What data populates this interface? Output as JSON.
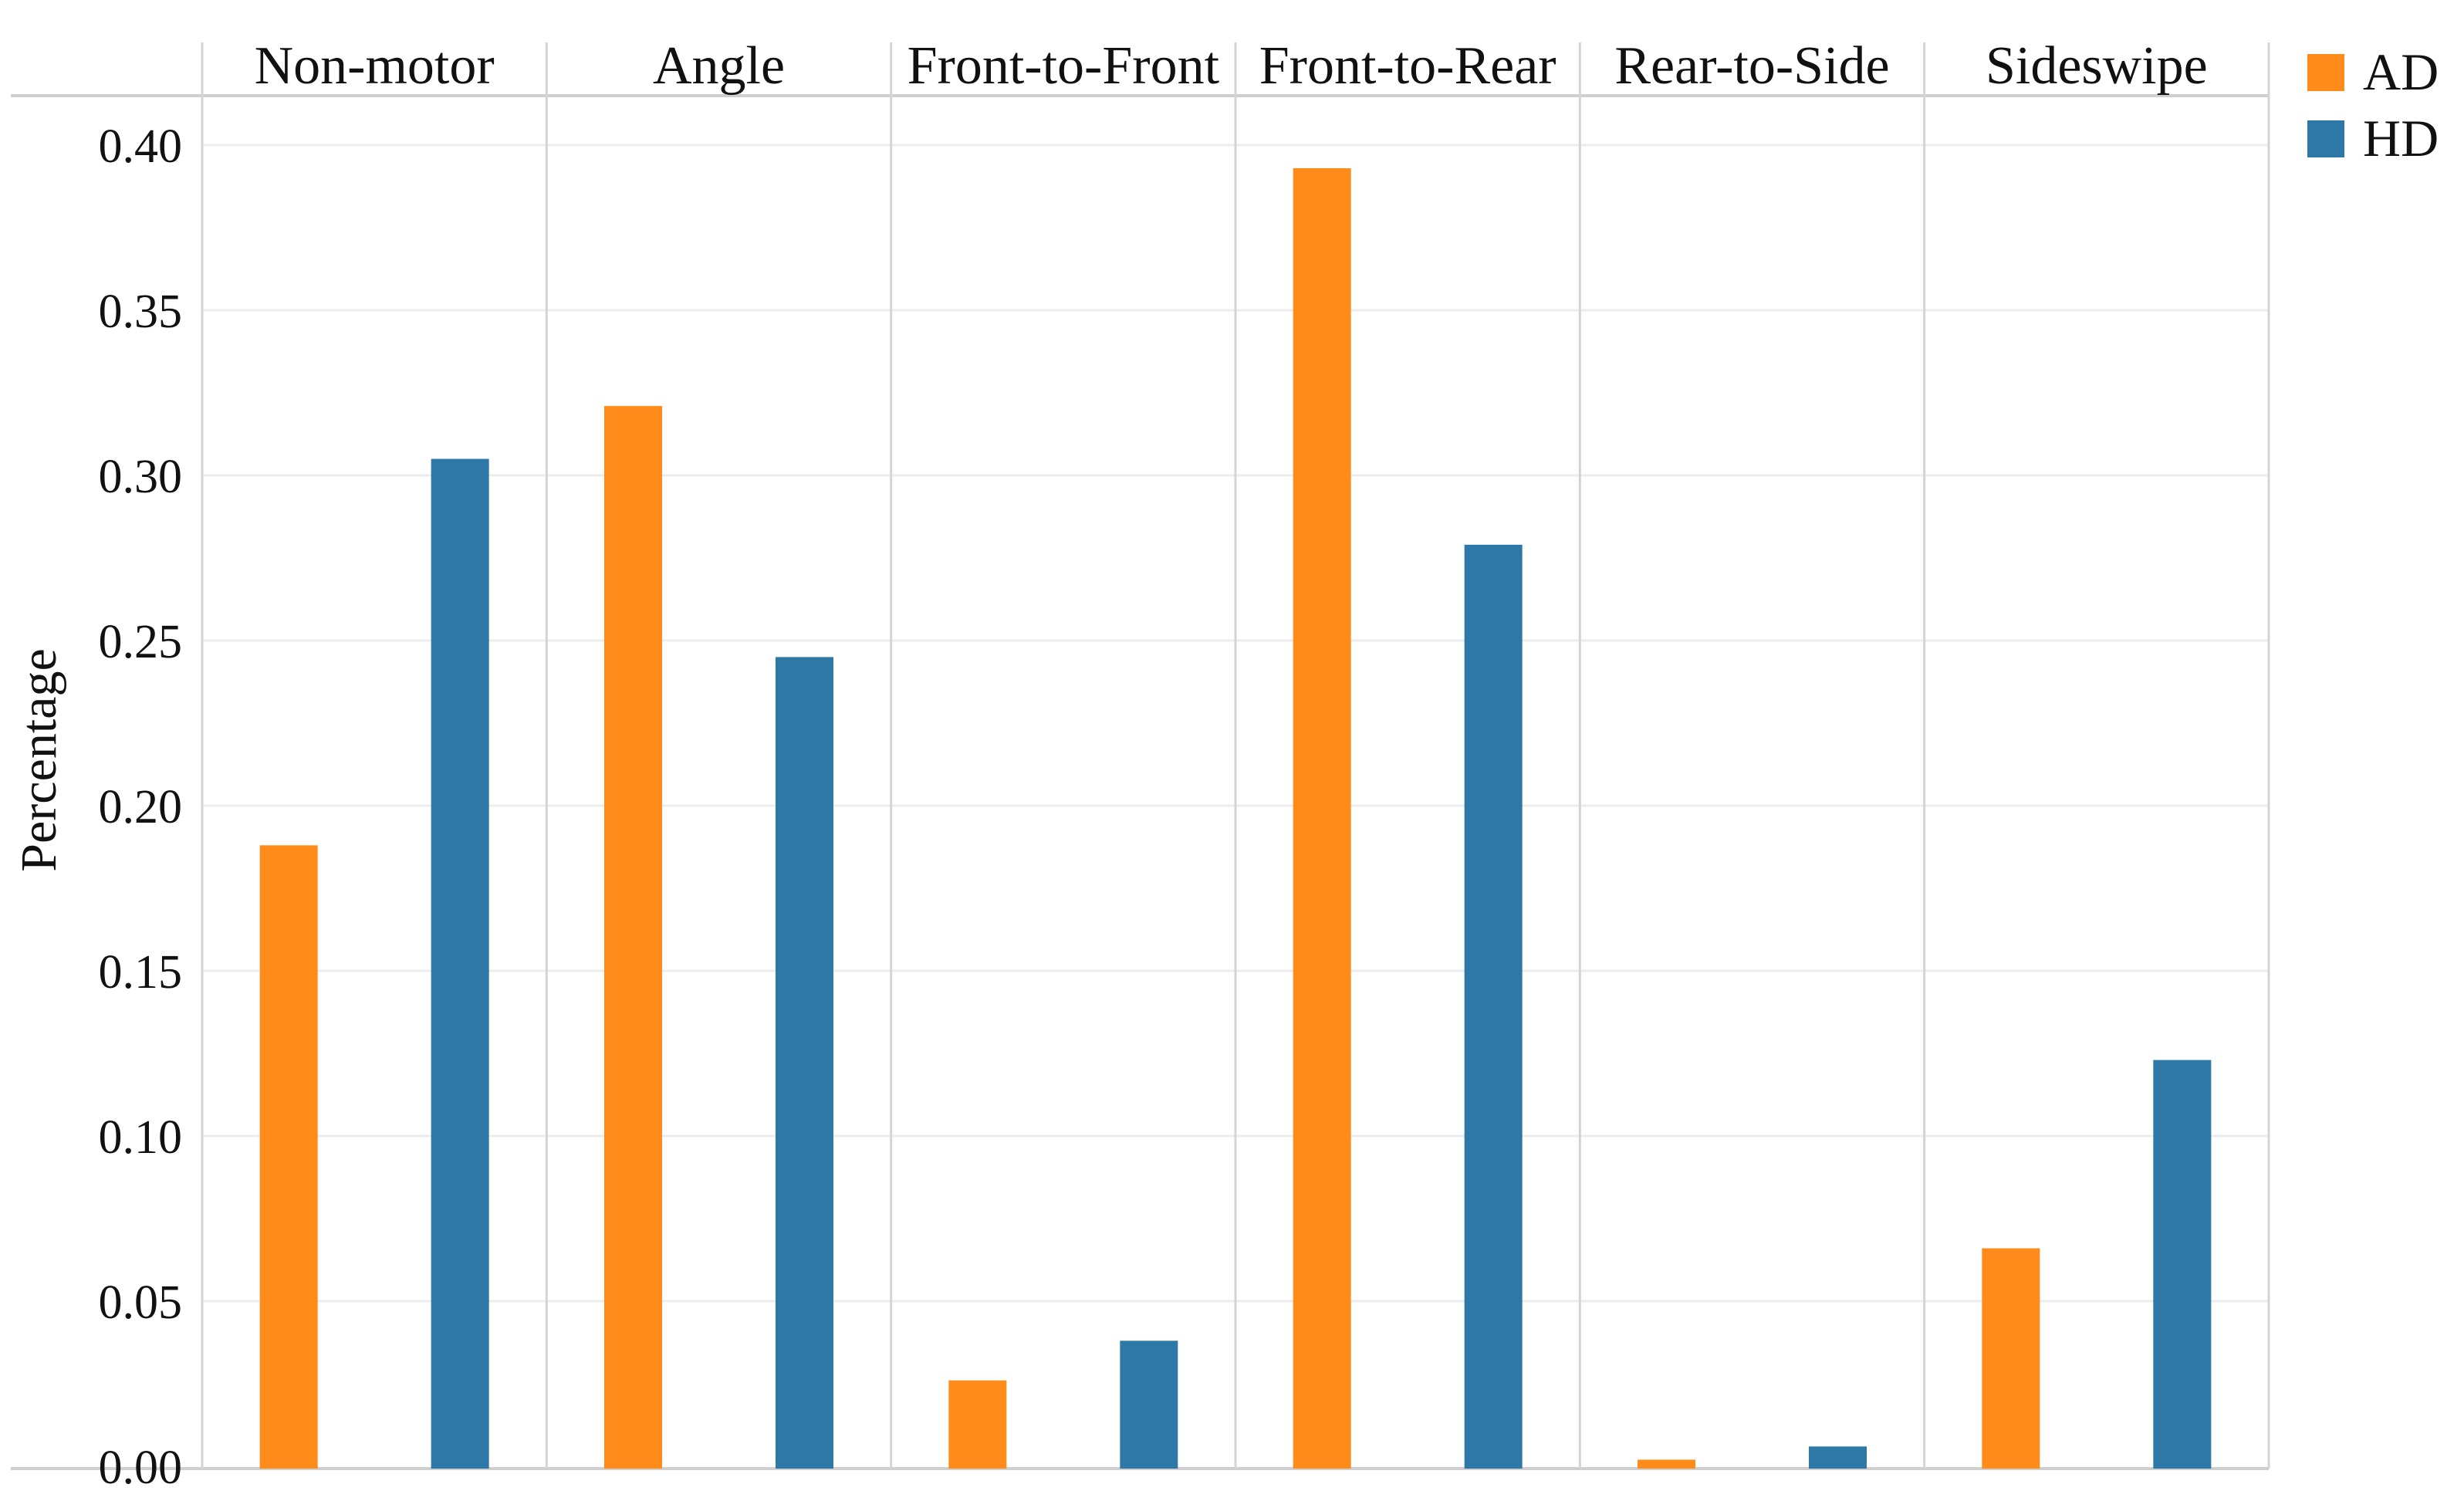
{
  "chart_data": {
    "type": "bar",
    "ylabel": "Percentage",
    "ylim": [
      0,
      0.41
    ],
    "yticks": [
      "0.00",
      "0.05",
      "0.10",
      "0.15",
      "0.20",
      "0.25",
      "0.30",
      "0.35",
      "0.40"
    ],
    "categories": [
      "Non-motor",
      "Angle",
      "Front-to-Front",
      "Front-to-Rear",
      "Rear-to-Side",
      "Sideswipe"
    ],
    "series": [
      {
        "name": "AD",
        "color": "#ff8c1a",
        "values": [
          0.188,
          0.321,
          0.026,
          0.393,
          0.002,
          0.066
        ]
      },
      {
        "name": "HD",
        "color": "#2e78a8",
        "values": [
          0.305,
          0.245,
          0.038,
          0.279,
          0.006,
          0.123
        ]
      }
    ],
    "legend_position": "top-right",
    "grid": true
  }
}
